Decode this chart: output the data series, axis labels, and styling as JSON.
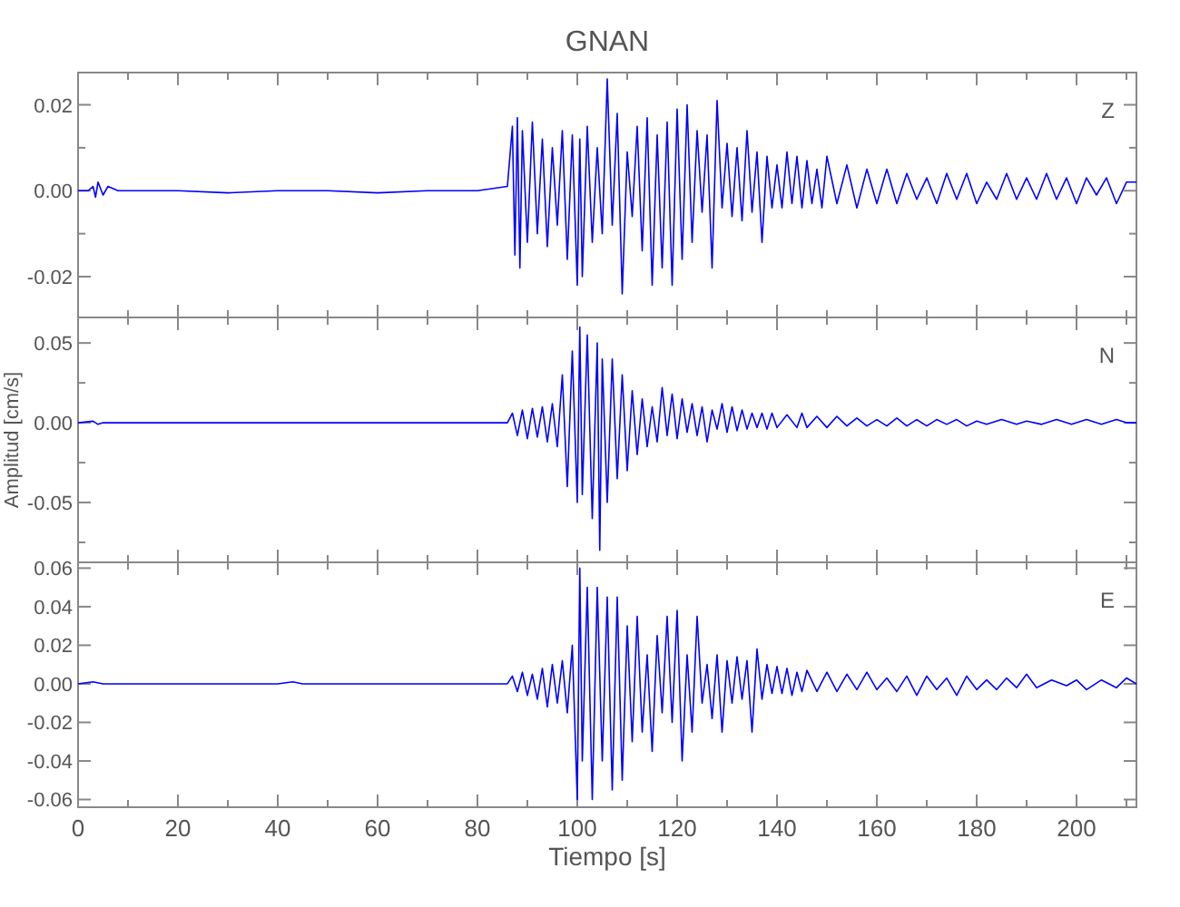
{
  "chart_data": [
    {
      "type": "line",
      "title": "GNAN",
      "annotations": [
        "Z"
      ],
      "tick_labels": "y",
      "xlim": [
        0,
        212
      ],
      "ylim": [
        -0.0295,
        0.0275
      ],
      "xticks": [
        0,
        {
          "value": 10,
          "label": null
        },
        20,
        {
          "value": 30,
          "label": null
        },
        40,
        {
          "value": 50,
          "label": null
        },
        60,
        {
          "value": 70,
          "label": null
        },
        80,
        {
          "value": 90,
          "label": null
        },
        100,
        {
          "value": 110,
          "label": null
        },
        120,
        {
          "value": 130,
          "label": null
        },
        140,
        {
          "value": 150,
          "label": null
        },
        160,
        {
          "value": 170,
          "label": null
        },
        180,
        {
          "value": 190,
          "label": null
        },
        200,
        {
          "value": 210,
          "label": null
        }
      ],
      "yticks": [
        {
          "value": -0.02,
          "label": "-0.02"
        },
        {
          "value": -0.01,
          "label": null
        },
        {
          "value": 0,
          "label": "0.00"
        },
        {
          "value": 0.01,
          "label": null
        },
        {
          "value": 0.02,
          "label": "0.02"
        }
      ],
      "series": [
        {
          "color": "#0000ff",
          "x": [
            0,
            2,
            3,
            3.5,
            4,
            5,
            6,
            8,
            20,
            30,
            40,
            50,
            60,
            70,
            80,
            86,
            87,
            87.5,
            88,
            88.5,
            89,
            90,
            91,
            92,
            93,
            94,
            95,
            96,
            97,
            98,
            99,
            100,
            100.5,
            101,
            102,
            103,
            104,
            105,
            106,
            107,
            108,
            109,
            110,
            111,
            112,
            113,
            114,
            115,
            116,
            117,
            118,
            119,
            120,
            121,
            122,
            123,
            124,
            125,
            126,
            127,
            128,
            129,
            130,
            131,
            132,
            133,
            134,
            135,
            136,
            137,
            138,
            139,
            140,
            141,
            142,
            143,
            144,
            145,
            146,
            147,
            148,
            149,
            150,
            152,
            154,
            156,
            158,
            160,
            162,
            164,
            166,
            168,
            170,
            172,
            174,
            176,
            178,
            180,
            182,
            184,
            186,
            188,
            190,
            192,
            194,
            196,
            198,
            200,
            202,
            204,
            206,
            208,
            210,
            212
          ],
          "values": [
            0,
            0,
            0.001,
            -0.0015,
            0.002,
            -0.001,
            0.001,
            0,
            0,
            -0.0005,
            0,
            0,
            -0.0005,
            0,
            0,
            0.001,
            0.015,
            -0.015,
            0.017,
            -0.018,
            0.014,
            -0.012,
            0.016,
            -0.01,
            0.012,
            -0.013,
            0.01,
            -0.008,
            0.014,
            -0.016,
            0.013,
            -0.022,
            0.012,
            -0.02,
            0.015,
            -0.012,
            0.01,
            -0.01,
            0.026,
            -0.008,
            0.018,
            -0.024,
            0.009,
            -0.006,
            0.015,
            -0.014,
            0.017,
            -0.022,
            0.013,
            -0.018,
            0.016,
            -0.022,
            0.019,
            -0.016,
            0.02,
            -0.012,
            0.014,
            -0.005,
            0.013,
            -0.018,
            0.021,
            -0.004,
            0.011,
            -0.006,
            0.01,
            -0.007,
            0.014,
            -0.005,
            0.009,
            -0.012,
            0.008,
            -0.004,
            0.006,
            -0.004,
            0.009,
            -0.003,
            0.008,
            -0.004,
            0.007,
            -0.003,
            0.005,
            -0.004,
            0.008,
            -0.003,
            0.006,
            -0.004,
            0.005,
            -0.003,
            0.005,
            -0.003,
            0.004,
            -0.002,
            0.003,
            -0.003,
            0.004,
            -0.002,
            0.004,
            -0.003,
            0.002,
            -0.002,
            0.004,
            -0.002,
            0.003,
            -0.002,
            0.004,
            -0.002,
            0.003,
            -0.003,
            0.003,
            -0.001,
            0.003,
            -0.003,
            0.002,
            0.002
          ]
        }
      ]
    },
    {
      "type": "line",
      "ylabel": "Amplitud [cm/s]",
      "annotations": [
        "N"
      ],
      "tick_labels": "y",
      "xlim": [
        0,
        212
      ],
      "ylim": [
        -0.0875,
        0.066
      ],
      "xticks": [
        0,
        {
          "value": 10,
          "label": null
        },
        20,
        {
          "value": 30,
          "label": null
        },
        40,
        {
          "value": 50,
          "label": null
        },
        60,
        {
          "value": 70,
          "label": null
        },
        80,
        {
          "value": 90,
          "label": null
        },
        100,
        {
          "value": 110,
          "label": null
        },
        120,
        {
          "value": 130,
          "label": null
        },
        140,
        {
          "value": 150,
          "label": null
        },
        160,
        {
          "value": 170,
          "label": null
        },
        180,
        {
          "value": 190,
          "label": null
        },
        200,
        {
          "value": 210,
          "label": null
        }
      ],
      "yticks": [
        {
          "value": -0.075,
          "label": null
        },
        {
          "value": -0.05,
          "label": "-0.05"
        },
        {
          "value": -0.025,
          "label": null
        },
        {
          "value": 0,
          "label": "0.00"
        },
        {
          "value": 0.025,
          "label": null
        },
        {
          "value": 0.05,
          "label": "0.05"
        }
      ],
      "series": [
        {
          "color": "#0000ff",
          "x": [
            0,
            3,
            4,
            5,
            20,
            40,
            60,
            80,
            86,
            87,
            88,
            89,
            90,
            91,
            92,
            93,
            94,
            95,
            96,
            97,
            98,
            99,
            100,
            100.5,
            101,
            102,
            103,
            104,
            104.5,
            105,
            106,
            107,
            108,
            109,
            110,
            111,
            112,
            113,
            114,
            115,
            116,
            117,
            118,
            119,
            120,
            121,
            122,
            123,
            124,
            125,
            126,
            127,
            128,
            129,
            130,
            131,
            132,
            133,
            134,
            135,
            136,
            137,
            138,
            139,
            140,
            142,
            144,
            145,
            146,
            148,
            150,
            152,
            154,
            156,
            158,
            160,
            162,
            164,
            166,
            168,
            170,
            172,
            174,
            176,
            178,
            180,
            182,
            185,
            188,
            190,
            193,
            196,
            199,
            202,
            205,
            208,
            210,
            212
          ],
          "values": [
            0,
            0.001,
            -0.001,
            0,
            0,
            0,
            0,
            0,
            0,
            0.006,
            -0.008,
            0.008,
            -0.01,
            0.009,
            -0.009,
            0.01,
            -0.012,
            0.012,
            -0.015,
            0.03,
            -0.04,
            0.045,
            -0.05,
            0.06,
            -0.045,
            0.055,
            -0.06,
            0.05,
            -0.08,
            0.04,
            -0.05,
            0.04,
            -0.035,
            0.03,
            -0.03,
            0.02,
            -0.02,
            0.015,
            -0.015,
            0.01,
            -0.012,
            0.022,
            -0.008,
            0.018,
            -0.01,
            0.015,
            -0.006,
            0.012,
            -0.008,
            0.01,
            -0.012,
            0.008,
            -0.004,
            0.012,
            -0.006,
            0.01,
            -0.005,
            0.008,
            -0.004,
            0.006,
            -0.003,
            0.006,
            -0.004,
            0.006,
            -0.003,
            0.005,
            -0.003,
            0.006,
            -0.003,
            0.004,
            -0.003,
            0.004,
            -0.002,
            0.003,
            -0.002,
            0.002,
            -0.002,
            0.003,
            -0.002,
            0.002,
            -0.002,
            0.002,
            -0.001,
            0.002,
            -0.002,
            0.001,
            -0.001,
            0.002,
            -0.001,
            0.001,
            -0.001,
            0.002,
            -0.001,
            0.002,
            -0.001,
            0.002,
            0,
            0
          ]
        }
      ]
    },
    {
      "type": "line",
      "xlabel": "Tiempo [s]",
      "annotations": [
        "E"
      ],
      "xlim": [
        0,
        212
      ],
      "ylim": [
        -0.064,
        0.063
      ],
      "xticks": [
        0,
        {
          "value": 10,
          "label": null
        },
        20,
        {
          "value": 30,
          "label": null
        },
        40,
        {
          "value": 50,
          "label": null
        },
        60,
        {
          "value": 70,
          "label": null
        },
        80,
        {
          "value": 90,
          "label": null
        },
        100,
        {
          "value": 110,
          "label": null
        },
        120,
        {
          "value": 130,
          "label": null
        },
        140,
        {
          "value": 150,
          "label": null
        },
        160,
        {
          "value": 170,
          "label": null
        },
        180,
        {
          "value": 190,
          "label": null
        },
        200,
        {
          "value": 210,
          "label": null
        }
      ],
      "yticks": [
        {
          "value": -0.06,
          "label": "-0.06"
        },
        {
          "value": -0.04,
          "label": "-0.04"
        },
        {
          "value": -0.02,
          "label": "-0.02"
        },
        {
          "value": 0,
          "label": "0.00"
        },
        {
          "value": 0.02,
          "label": "0.02"
        },
        {
          "value": 0.04,
          "label": "0.04"
        },
        {
          "value": 0.06,
          "label": "0.06"
        }
      ],
      "series": [
        {
          "color": "#0000ff",
          "x": [
            0,
            3,
            5,
            20,
            40,
            43,
            45,
            60,
            80,
            86,
            87,
            88,
            89,
            90,
            91,
            92,
            93,
            94,
            95,
            96,
            97,
            98,
            99,
            100,
            100.5,
            101,
            102,
            103,
            104,
            105,
            106,
            107,
            108,
            109,
            110,
            111,
            112,
            113,
            114,
            115,
            116,
            117,
            118,
            119,
            120,
            121,
            122,
            123,
            124,
            125,
            126,
            127,
            128,
            129,
            130,
            131,
            132,
            133,
            134,
            135,
            136,
            137,
            138,
            139,
            140,
            141,
            142,
            143,
            144,
            145,
            146,
            148,
            150,
            152,
            154,
            156,
            158,
            160,
            162,
            164,
            166,
            168,
            170,
            172,
            174,
            176,
            178,
            180,
            182,
            184,
            186,
            188,
            190,
            192,
            195,
            198,
            200,
            202,
            205,
            208,
            210,
            212
          ],
          "values": [
            0,
            0.001,
            0,
            0,
            0,
            0.001,
            0,
            0,
            0,
            0,
            0.004,
            -0.004,
            0.006,
            -0.006,
            0.005,
            -0.008,
            0.008,
            -0.012,
            0.01,
            -0.01,
            0.012,
            -0.015,
            0.02,
            -0.06,
            0.06,
            -0.04,
            0.05,
            -0.06,
            0.05,
            -0.04,
            0.045,
            -0.055,
            0.045,
            -0.05,
            0.03,
            -0.03,
            0.035,
            -0.025,
            0.015,
            -0.035,
            0.025,
            -0.015,
            0.035,
            -0.02,
            0.038,
            -0.04,
            0.015,
            -0.025,
            0.035,
            -0.01,
            0.01,
            -0.018,
            0.015,
            -0.025,
            0.012,
            -0.01,
            0.014,
            -0.008,
            0.012,
            -0.025,
            0.018,
            -0.008,
            0.01,
            -0.005,
            0.009,
            -0.005,
            0.008,
            -0.006,
            0.006,
            -0.004,
            0.007,
            -0.004,
            0.006,
            -0.004,
            0.005,
            -0.003,
            0.006,
            -0.003,
            0.003,
            -0.004,
            0.004,
            -0.006,
            0.004,
            -0.003,
            0.003,
            -0.006,
            0.004,
            -0.003,
            0.002,
            -0.003,
            0.003,
            -0.002,
            0.005,
            -0.002,
            0.002,
            -0.001,
            0.002,
            -0.003,
            0.002,
            -0.002,
            0.003,
            0
          ]
        }
      ]
    }
  ]
}
